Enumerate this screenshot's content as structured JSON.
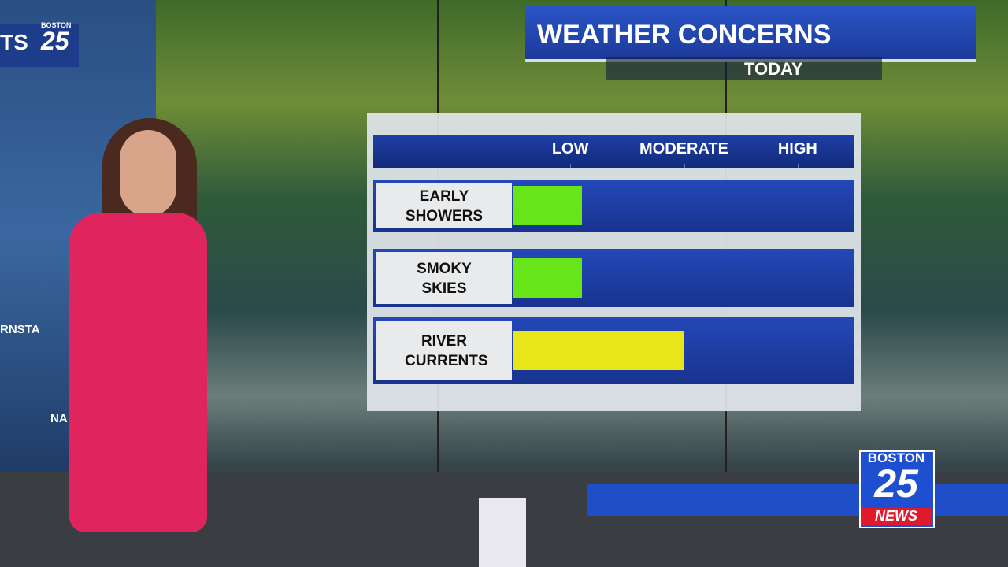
{
  "chart_data": {
    "type": "bar",
    "orientation": "horizontal",
    "title": "WEATHER CONCERNS",
    "subtitle": "TODAY",
    "categories": [
      "EARLY SHOWERS",
      "SMOKY SKIES",
      "RIVER CURRENTS"
    ],
    "values": [
      0.6,
      0.6,
      1.5
    ],
    "colors": [
      "#66e619",
      "#66e619",
      "#e6e619"
    ],
    "xlim": [
      0,
      3
    ],
    "xticks": [
      {
        "value": 0.5,
        "label": "LOW"
      },
      {
        "value": 1.5,
        "label": "MODERATE"
      },
      {
        "value": 2.5,
        "label": "HIGH"
      }
    ]
  },
  "station_logo": {
    "top": "BOSTON",
    "number": "25",
    "bottom": "NEWS"
  },
  "background_texts": [
    "TS",
    "BOSTON",
    "25",
    "RNSTA",
    "NA"
  ]
}
